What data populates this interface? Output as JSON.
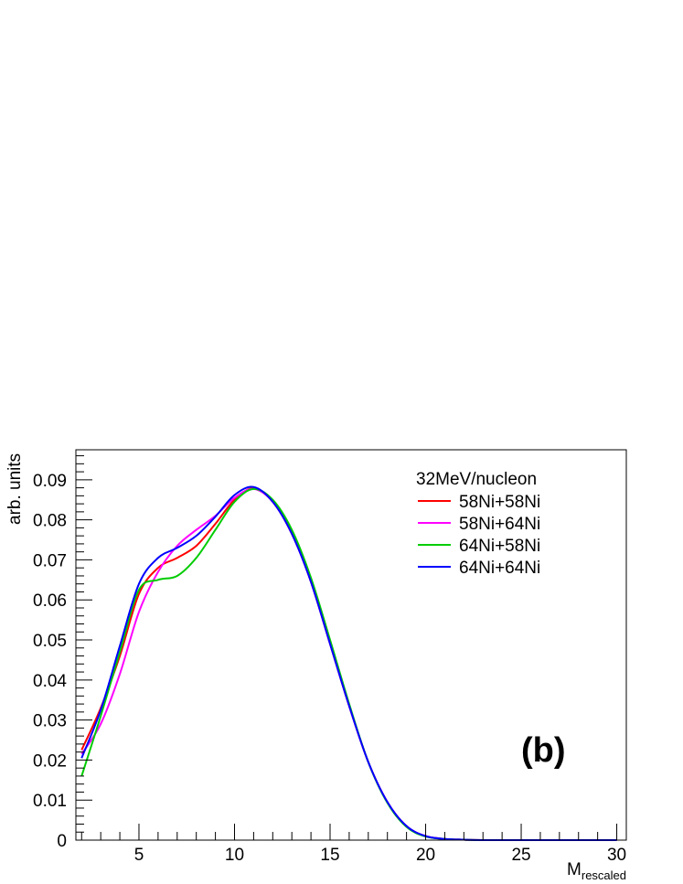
{
  "chart_data": {
    "type": "line",
    "xlabel": "M",
    "xlabel_sub": "rescaled",
    "ylabel": "arb. units",
    "xlim": [
      1.7,
      30.5
    ],
    "ylim": [
      0,
      0.0975
    ],
    "x_ticks": [
      5,
      10,
      15,
      20,
      25,
      30
    ],
    "x_tick_labels": [
      "5",
      "10",
      "15",
      "20",
      "25",
      "30"
    ],
    "y_ticks": [
      0,
      0.01,
      0.02,
      0.03,
      0.04,
      0.05,
      0.06,
      0.07,
      0.08,
      0.09
    ],
    "y_tick_labels": [
      "0",
      "0.01",
      "0.02",
      "0.03",
      "0.04",
      "0.05",
      "0.06",
      "0.07",
      "0.08",
      "0.09"
    ],
    "legend_title": "32MeV/nucleon",
    "legend_position": "top-right",
    "annotation": "(b)",
    "grid": false,
    "x": [
      2,
      3,
      4,
      5,
      6,
      7,
      8,
      9,
      10,
      11,
      12,
      13,
      14,
      15,
      16,
      17,
      18,
      19,
      20,
      21,
      22,
      23,
      24,
      25,
      26,
      27,
      28,
      29,
      30
    ],
    "series": [
      {
        "name": "58Ni+58Ni",
        "color": "#ff0000",
        "values": [
          0.0225,
          0.033,
          0.046,
          0.0615,
          0.068,
          0.0705,
          0.0735,
          0.079,
          0.085,
          0.0879,
          0.0845,
          0.0765,
          0.0645,
          0.049,
          0.0335,
          0.0195,
          0.0095,
          0.0035,
          0.001,
          0.0003,
          0.0001,
          0,
          0,
          0,
          0,
          0,
          0,
          0,
          0
        ]
      },
      {
        "name": "58Ni+64Ni",
        "color": "#ff00ff",
        "values": [
          0.0215,
          0.029,
          0.0415,
          0.057,
          0.067,
          0.0735,
          0.0775,
          0.081,
          0.0855,
          0.0877,
          0.0845,
          0.0765,
          0.0645,
          0.049,
          0.0335,
          0.0195,
          0.0095,
          0.0035,
          0.001,
          0.0003,
          0.0001,
          0,
          0,
          0,
          0,
          0,
          0,
          0,
          0
        ]
      },
      {
        "name": "64Ni+58Ni",
        "color": "#00cc00",
        "values": [
          0.016,
          0.031,
          0.047,
          0.0625,
          0.065,
          0.066,
          0.0705,
          0.0775,
          0.0845,
          0.0877,
          0.085,
          0.0775,
          0.0655,
          0.05,
          0.034,
          0.0195,
          0.0093,
          0.0033,
          0.0009,
          0.0003,
          0.0001,
          0,
          0,
          0,
          0,
          0,
          0,
          0,
          0
        ]
      },
      {
        "name": "64Ni+64Ni",
        "color": "#0000ff",
        "values": [
          0.0205,
          0.0325,
          0.0485,
          0.064,
          0.0705,
          0.073,
          0.076,
          0.0808,
          0.0862,
          0.0882,
          0.0845,
          0.0765,
          0.0645,
          0.049,
          0.0335,
          0.0195,
          0.0095,
          0.0035,
          0.001,
          0.0003,
          0.0001,
          0,
          0,
          0,
          0,
          0,
          0,
          0,
          0
        ]
      }
    ]
  }
}
